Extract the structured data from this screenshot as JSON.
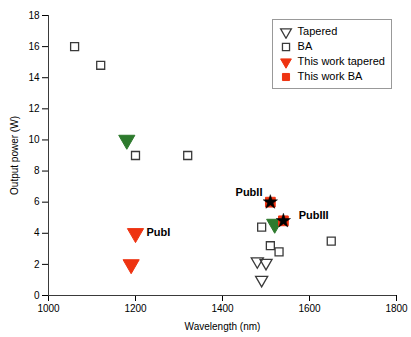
{
  "chart_data": {
    "type": "scatter",
    "xlabel": "Wavelength (nm)",
    "ylabel": "Output power (W)",
    "xlim": [
      1000,
      1800
    ],
    "ylim": [
      0,
      18
    ],
    "xticks": [
      1000,
      1200,
      1400,
      1600,
      1800
    ],
    "yticks": [
      0,
      2,
      4,
      6,
      8,
      10,
      12,
      14,
      16,
      18
    ],
    "grid": false,
    "legend": "upper right",
    "series": [
      {
        "name": "Tapered",
        "color": "#3a3a3a",
        "marker": "triangle_down_open",
        "x": [
          1480,
          1490,
          1500
        ],
        "values": [
          2.2,
          1.0,
          2.1
        ]
      },
      {
        "name": "BA",
        "color": "#3a3a3a",
        "marker": "square_open",
        "x": [
          1060,
          1120,
          1200,
          1320,
          1490,
          1510,
          1530,
          1650
        ],
        "values": [
          16.0,
          14.8,
          9.0,
          9.0,
          4.4,
          3.2,
          2.8,
          3.5
        ]
      },
      {
        "color": "#2d7a2d",
        "marker": "triangle_down",
        "x": [
          1180,
          1520
        ],
        "values": [
          10.0,
          4.6
        ]
      },
      {
        "name": "This work tapered",
        "color": "#ee3311",
        "marker": "triangle_down",
        "x": [
          1200,
          1190
        ],
        "values": [
          4.0,
          2.0
        ]
      },
      {
        "name": "This work BA",
        "color": "#ee3311",
        "marker": "square",
        "x": [
          1510,
          1540
        ],
        "values": [
          6.0,
          4.8
        ]
      },
      {
        "color": "#000000",
        "marker": "star",
        "x": [
          1510,
          1540
        ],
        "values": [
          6.0,
          4.8
        ]
      }
    ],
    "annotations": [
      {
        "text": "PubI",
        "x": 1225,
        "y": 4.05
      },
      {
        "text": "PubII",
        "x": 1430,
        "y": 6.6
      },
      {
        "text": "PubIII",
        "x": 1575,
        "y": 5.15
      }
    ]
  }
}
